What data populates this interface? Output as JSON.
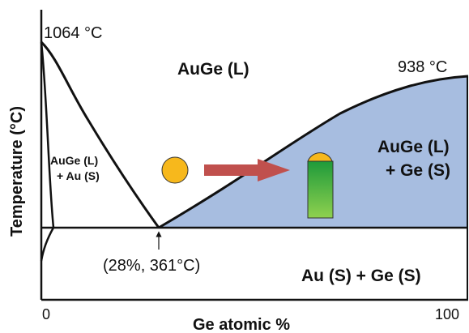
{
  "axis": {
    "ylabel": "Temperature (°C)",
    "xlabel": "Ge atomic %",
    "x_tick_min": "0",
    "x_tick_max": "100"
  },
  "annotations": {
    "au_melting": "1064 °C",
    "ge_melting": "938 °C",
    "eutectic": "(28%, 361°C)"
  },
  "regions": {
    "liquid": "AuGe (L)",
    "left_two_phase_line1": "AuGe (L)",
    "left_two_phase_line2": "+ Au (S)",
    "right_two_phase_line1": "AuGe (L)",
    "right_two_phase_line2": "+ Ge (S)",
    "solid": "Au (S) + Ge (S)"
  },
  "colors": {
    "ge_solid_region": "#a7bde0",
    "droplet": "#f7b81c",
    "arrow": "#c0504d",
    "nanowire_top": "#1e9a3a",
    "nanowire_bottom": "#8fd14f",
    "line": "#111111"
  }
}
